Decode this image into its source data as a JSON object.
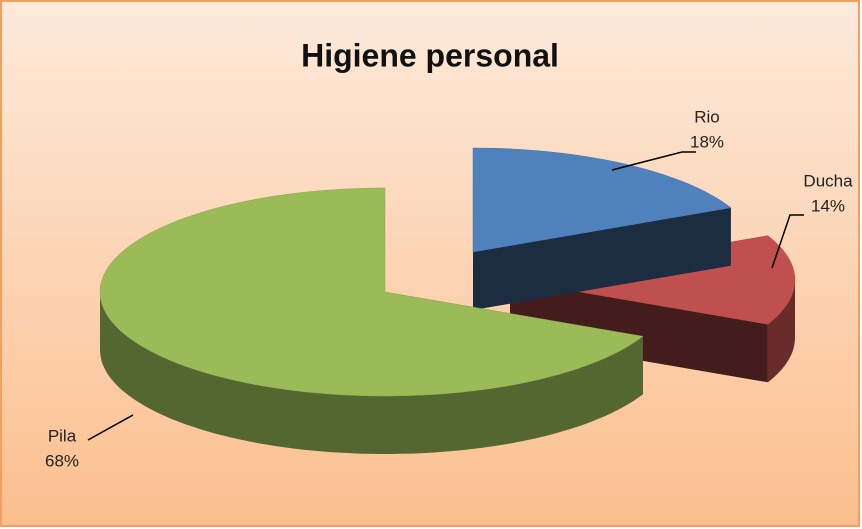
{
  "chart_data": {
    "type": "pie3d",
    "title": "Higiene personal",
    "categories": [
      "Rio",
      "Ducha",
      "Pila"
    ],
    "values": [
      18,
      14,
      68
    ],
    "value_labels": [
      "18%",
      "14%",
      "68%"
    ],
    "colors": [
      "#4f81bd",
      "#c0504d",
      "#9bbb59"
    ]
  }
}
